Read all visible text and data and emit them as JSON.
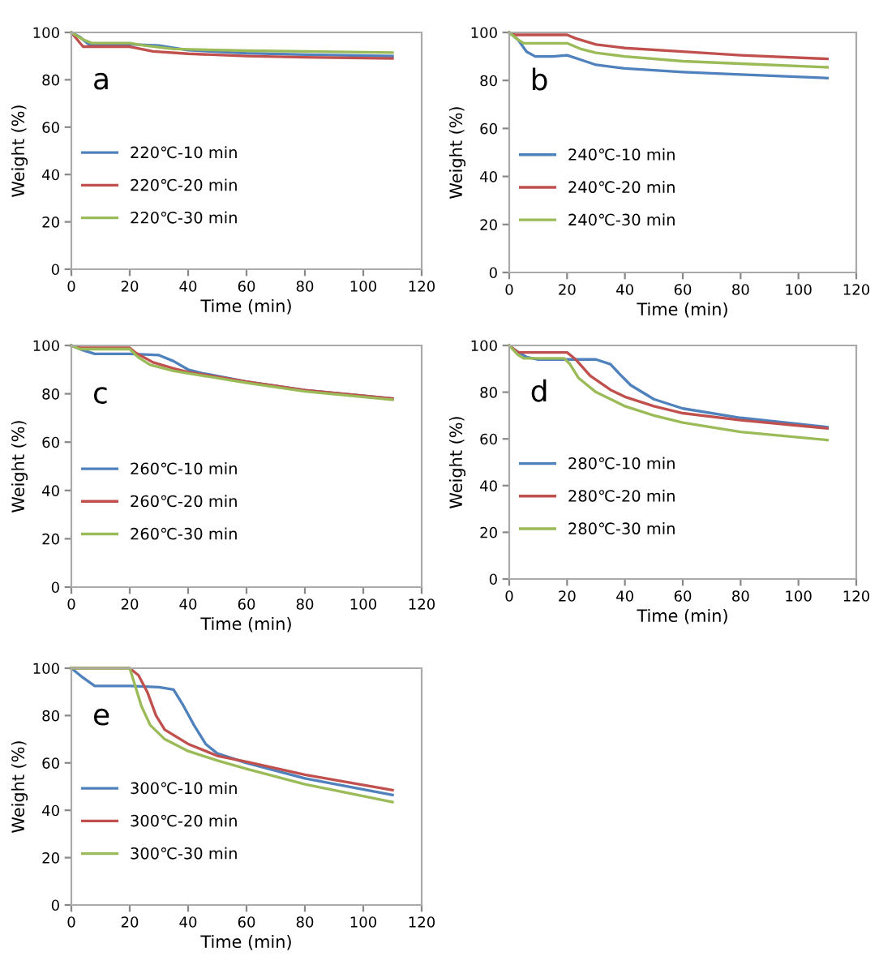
{
  "chart_data": [
    {
      "type": "line",
      "xlabel": "Time (min)",
      "ylabel": "Weight (%)",
      "annotations": [
        "a"
      ],
      "xlim": [
        0,
        120
      ],
      "ylim": [
        0,
        100
      ],
      "xticks": [
        0,
        20,
        40,
        60,
        80,
        100,
        120
      ],
      "yticks": [
        0,
        20,
        40,
        60,
        80,
        100
      ],
      "grid": false,
      "legend": "center left",
      "marker": "none",
      "line_style": "solid",
      "series": [
        {
          "name": "220℃-10 min",
          "color": "#4f81bd",
          "x": [
            0,
            3,
            6,
            10,
            20,
            30,
            40,
            60,
            80,
            110
          ],
          "values": [
            100,
            98,
            95,
            95,
            95,
            94.5,
            92.5,
            91.2,
            90.6,
            90
          ]
        },
        {
          "name": "220℃-20 min",
          "color": "#c0504d",
          "x": [
            0,
            2,
            4,
            10,
            20,
            28,
            40,
            60,
            80,
            110
          ],
          "values": [
            100,
            97,
            94,
            94,
            94,
            92,
            91,
            90,
            89.5,
            89
          ]
        },
        {
          "name": "220℃-30 min",
          "color": "#9bbb59",
          "x": [
            0,
            4,
            7,
            20,
            25,
            35,
            60,
            80,
            110
          ],
          "values": [
            100,
            97,
            95.5,
            95.5,
            94.5,
            93,
            92.3,
            92,
            91.5
          ]
        }
      ]
    },
    {
      "type": "line",
      "xlabel": "Time (min)",
      "ylabel": "Weight (%)",
      "annotations": [
        "b"
      ],
      "xlim": [
        0,
        120
      ],
      "ylim": [
        0,
        100
      ],
      "xticks": [
        0,
        20,
        40,
        60,
        80,
        100,
        120
      ],
      "yticks": [
        0,
        20,
        40,
        60,
        80,
        100
      ],
      "grid": false,
      "legend": "center left",
      "marker": "none",
      "line_style": "solid",
      "series": [
        {
          "name": "240℃-10 min",
          "color": "#4f81bd",
          "x": [
            0,
            3,
            6,
            9,
            15,
            20,
            25,
            30,
            40,
            60,
            80,
            110
          ],
          "values": [
            100,
            97,
            92,
            90,
            90,
            90.5,
            88.5,
            86.5,
            85,
            83.5,
            82.5,
            81
          ]
        },
        {
          "name": "240℃-20 min",
          "color": "#c0504d",
          "x": [
            0,
            2,
            10,
            20,
            23,
            30,
            40,
            60,
            80,
            110
          ],
          "values": [
            100,
            99,
            99,
            99,
            97.5,
            95,
            93.5,
            92,
            90.5,
            89
          ]
        },
        {
          "name": "240℃-30 min",
          "color": "#9bbb59",
          "x": [
            0,
            3,
            5,
            20,
            25,
            30,
            40,
            60,
            80,
            110
          ],
          "values": [
            100,
            97,
            95.5,
            95.5,
            93,
            91.5,
            90,
            88,
            87,
            85.5
          ]
        }
      ]
    },
    {
      "type": "line",
      "xlabel": "Time (min)",
      "ylabel": "Weight (%)",
      "annotations": [
        "c"
      ],
      "xlim": [
        0,
        120
      ],
      "ylim": [
        0,
        100
      ],
      "xticks": [
        0,
        20,
        40,
        60,
        80,
        100,
        120
      ],
      "yticks": [
        0,
        20,
        40,
        60,
        80,
        100
      ],
      "grid": false,
      "legend": "center left",
      "marker": "none",
      "line_style": "solid",
      "series": [
        {
          "name": "260℃-10 min",
          "color": "#4f81bd",
          "x": [
            0,
            4,
            8,
            20,
            30,
            35,
            40,
            45,
            60,
            80,
            110
          ],
          "values": [
            100,
            98,
            96.5,
            96.5,
            96,
            93.5,
            90,
            88.5,
            85,
            81.5,
            78
          ]
        },
        {
          "name": "260℃-20 min",
          "color": "#c0504d",
          "x": [
            0,
            3,
            10,
            20,
            22,
            28,
            35,
            40,
            60,
            80,
            110
          ],
          "values": [
            100,
            99,
            99,
            99,
            97,
            93,
            90.5,
            89,
            85,
            81.5,
            78
          ]
        },
        {
          "name": "260℃-30 min",
          "color": "#9bbb59",
          "x": [
            0,
            3,
            8,
            20,
            23,
            27,
            35,
            40,
            60,
            80,
            110
          ],
          "values": [
            100,
            98.5,
            98.5,
            98.5,
            95,
            92,
            89.5,
            88.5,
            84.5,
            81,
            77.5
          ]
        }
      ]
    },
    {
      "type": "line",
      "xlabel": "Time (min)",
      "ylabel": "Weight (%)",
      "annotations": [
        "d"
      ],
      "xlim": [
        0,
        120
      ],
      "ylim": [
        0,
        100
      ],
      "xticks": [
        0,
        20,
        40,
        60,
        80,
        100,
        120
      ],
      "yticks": [
        0,
        20,
        40,
        60,
        80,
        100
      ],
      "grid": false,
      "legend": "center left",
      "marker": "none",
      "line_style": "solid",
      "series": [
        {
          "name": "280℃-10 min",
          "color": "#4f81bd",
          "x": [
            0,
            2,
            6,
            10,
            30,
            35,
            38,
            42,
            50,
            60,
            80,
            110
          ],
          "values": [
            100,
            98,
            95,
            94,
            94,
            92,
            88,
            83,
            77,
            73,
            69,
            65
          ]
        },
        {
          "name": "280℃-20 min",
          "color": "#c0504d",
          "x": [
            0,
            3,
            18,
            20,
            23,
            28,
            35,
            40,
            50,
            60,
            80,
            110
          ],
          "values": [
            100,
            97,
            97,
            97,
            94,
            87,
            81,
            78,
            74,
            71,
            68,
            64.5
          ]
        },
        {
          "name": "280℃-30 min",
          "color": "#9bbb59",
          "x": [
            0,
            3,
            5,
            19,
            21,
            24,
            30,
            40,
            50,
            60,
            80,
            110
          ],
          "values": [
            100,
            96,
            94.5,
            94.5,
            92,
            86,
            80,
            74,
            70,
            67,
            63,
            59.5
          ]
        }
      ]
    },
    {
      "type": "line",
      "xlabel": "Time (min)",
      "ylabel": "Weight (%)",
      "annotations": [
        "e"
      ],
      "xlim": [
        0,
        120
      ],
      "ylim": [
        0,
        100
      ],
      "xticks": [
        0,
        20,
        40,
        60,
        80,
        100,
        120
      ],
      "yticks": [
        0,
        20,
        40,
        60,
        80,
        100
      ],
      "grid": false,
      "legend": "center left",
      "marker": "none",
      "line_style": "solid",
      "series": [
        {
          "name": "300℃-10 min",
          "color": "#4f81bd",
          "x": [
            0,
            4,
            8,
            20,
            30,
            35,
            38,
            42,
            46,
            50,
            60,
            80,
            110
          ],
          "values": [
            100,
            96,
            92.5,
            92.5,
            92,
            91,
            85,
            76,
            68,
            64,
            60,
            53.5,
            46.5
          ]
        },
        {
          "name": "300℃-20 min",
          "color": "#c0504d",
          "x": [
            0,
            20,
            23,
            26,
            29,
            32,
            40,
            50,
            60,
            80,
            110
          ],
          "values": [
            100,
            100,
            97,
            90,
            80,
            74,
            68,
            63,
            60.5,
            55,
            48.5
          ]
        },
        {
          "name": "300℃-30 min",
          "color": "#9bbb59",
          "x": [
            0,
            20,
            22,
            24,
            27,
            32,
            40,
            50,
            60,
            80,
            110
          ],
          "values": [
            100,
            100,
            92,
            84,
            76,
            70,
            65,
            61,
            57.5,
            51,
            43.5
          ]
        }
      ]
    }
  ]
}
